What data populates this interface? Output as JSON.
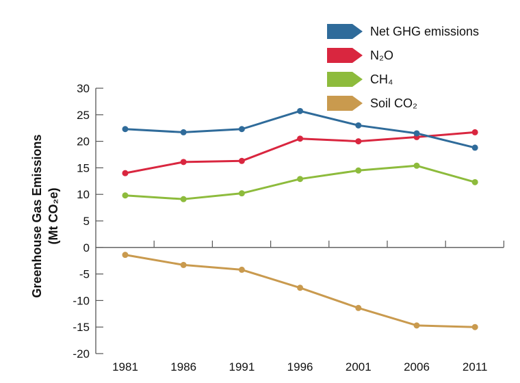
{
  "chart_data": {
    "type": "line",
    "x": [
      1981,
      1986,
      1991,
      1996,
      2001,
      2006,
      2011
    ],
    "ylabel_line1": "Greenhouse Gas Emissions",
    "ylabel_line2": "(Mt CO₂e)",
    "ylim": [
      -20,
      30
    ],
    "yticks": [
      30,
      25,
      20,
      15,
      10,
      5,
      0,
      -5,
      -10,
      -15,
      -20
    ],
    "grid": false,
    "legend_position": "top-right",
    "series": [
      {
        "name": "Net GHG emissions",
        "color": "#2f6b9a",
        "values": [
          22.3,
          21.7,
          22.3,
          25.7,
          23.0,
          21.5,
          18.8
        ]
      },
      {
        "name": "N₂O",
        "color": "#d9263f",
        "values": [
          14.0,
          16.1,
          16.3,
          20.5,
          20.0,
          20.8,
          21.7
        ]
      },
      {
        "name": "CH₄",
        "color": "#8dbb3c",
        "values": [
          9.8,
          9.1,
          10.2,
          12.9,
          14.5,
          15.4,
          12.3
        ]
      },
      {
        "name": "Soil CO₂",
        "color": "#c99a4e",
        "values": [
          -1.4,
          -3.3,
          -4.2,
          -7.6,
          -11.4,
          -14.7,
          -15.0
        ]
      }
    ]
  }
}
